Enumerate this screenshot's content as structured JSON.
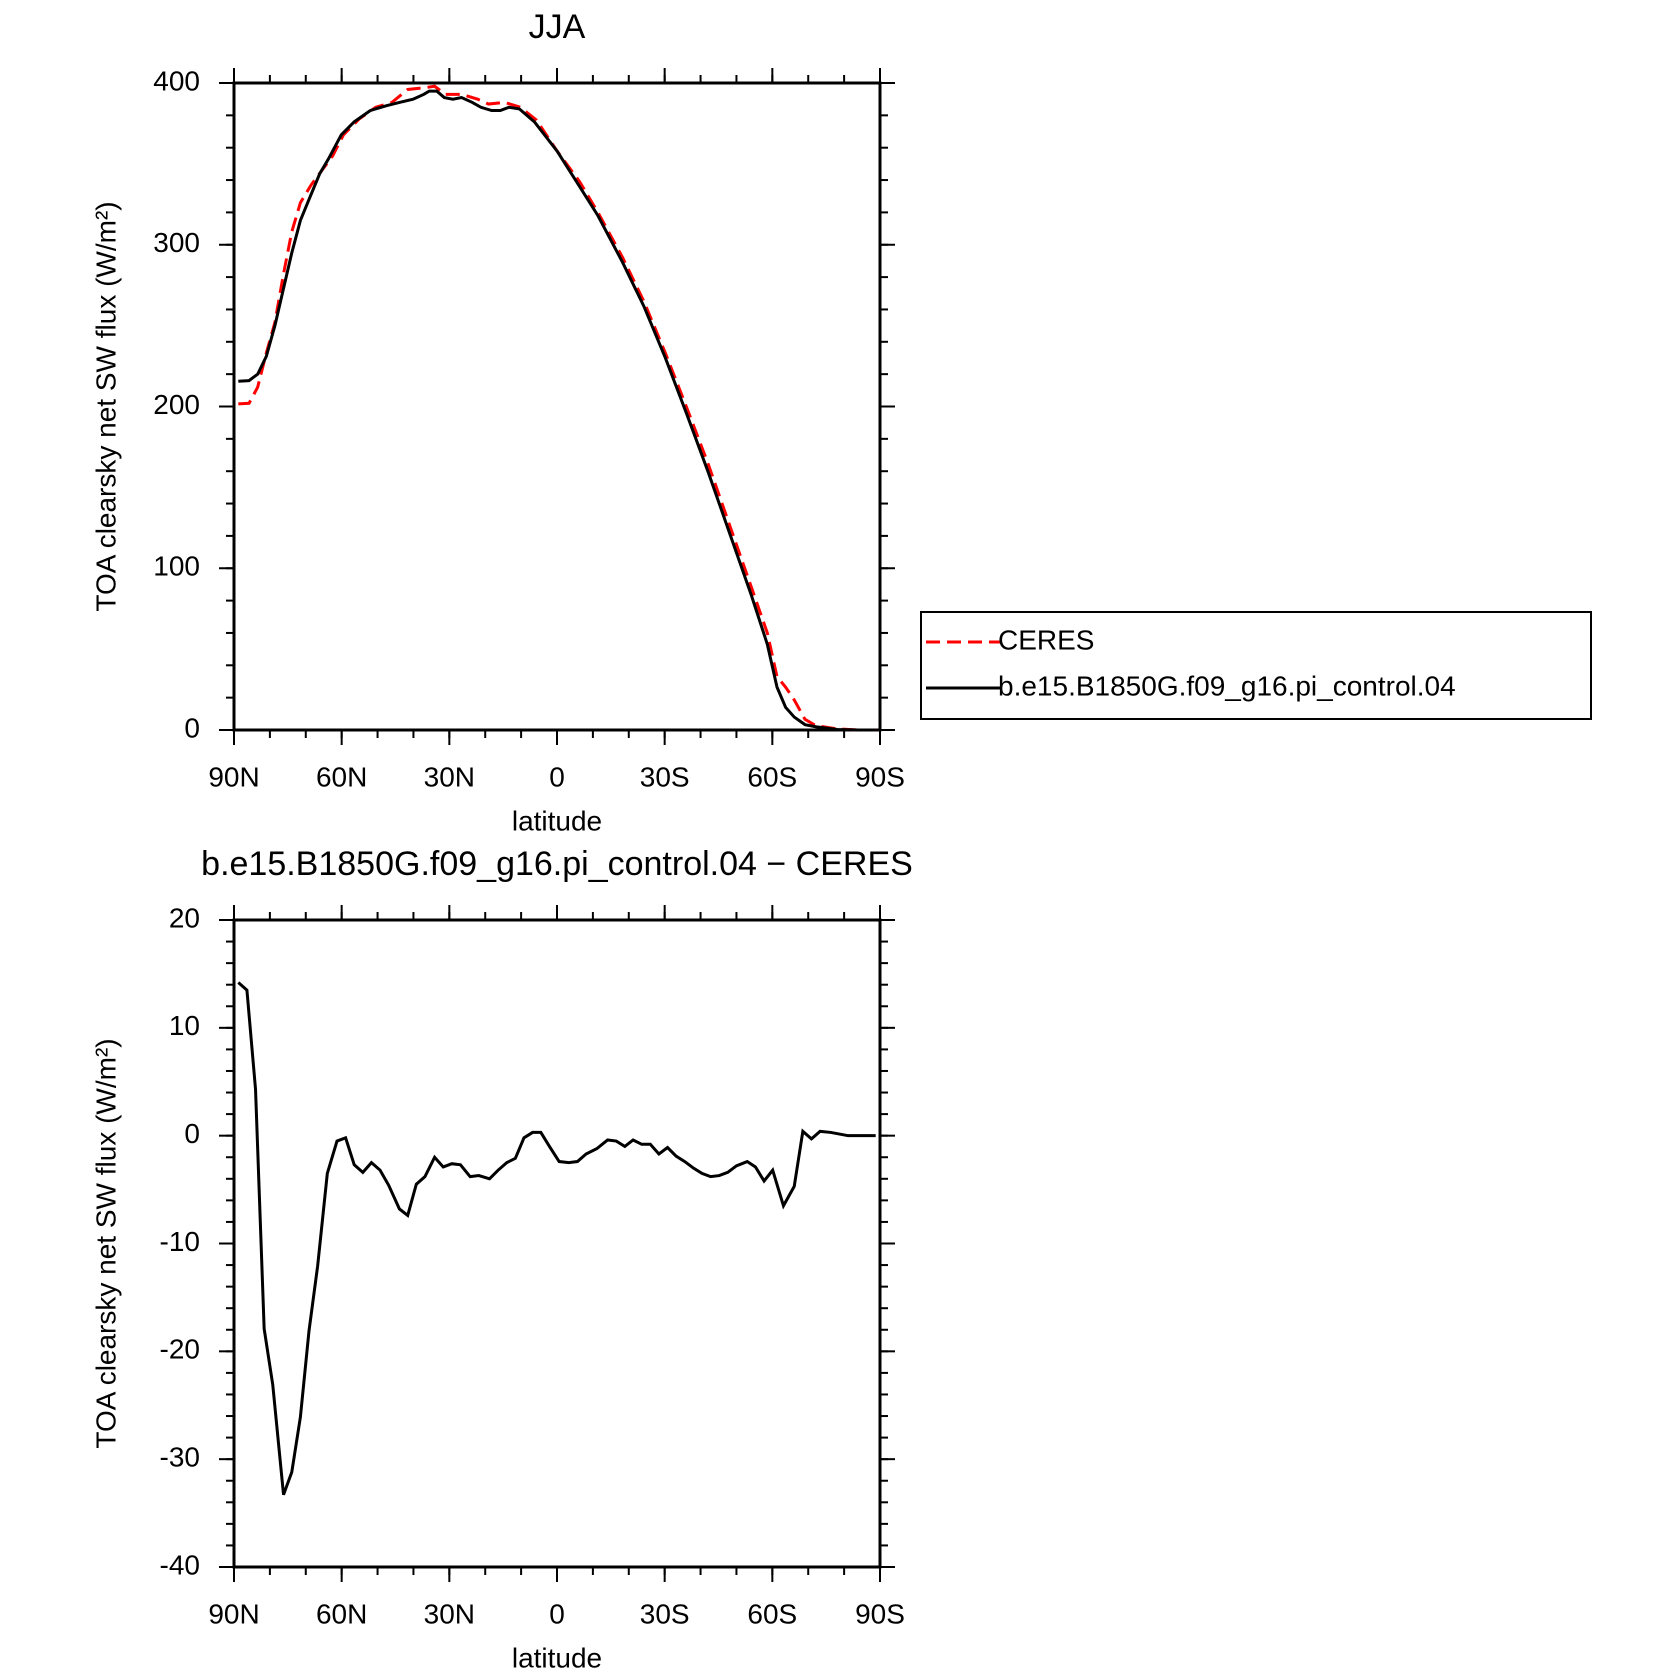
{
  "chart_data": [
    {
      "type": "line",
      "title": "JJA",
      "x_label": "latitude",
      "y_label": "TOA clearsky net SW flux (W/m²)",
      "xlim": [
        90,
        -90
      ],
      "xticks": [
        {
          "value": 90,
          "label": "90N"
        },
        {
          "value": 60,
          "label": "60N"
        },
        {
          "value": 30,
          "label": "30N"
        },
        0,
        {
          "value": -30,
          "label": "30S"
        },
        {
          "value": -60,
          "label": "60S"
        },
        {
          "value": -90,
          "label": "90S"
        }
      ],
      "xminorticks": [
        90,
        80,
        70,
        60,
        50,
        40,
        30,
        20,
        10,
        0,
        -10,
        -20,
        -30,
        -40,
        -50,
        -60,
        -70,
        -80,
        -90
      ],
      "ylim": [
        0,
        400
      ],
      "yticks": [
        0,
        100,
        200,
        300,
        400
      ],
      "yminorticks": [
        0,
        20,
        40,
        60,
        80,
        100,
        120,
        140,
        160,
        180,
        200,
        220,
        240,
        260,
        280,
        300,
        320,
        340,
        360,
        380,
        400
      ],
      "legend": "right",
      "series": [
        {
          "name": "CERES",
          "color": "#ff0000",
          "dashed": true,
          "x": [
            88.8,
            85.8,
            83.4,
            81.0,
            78.6,
            76.2,
            73.9,
            71.5,
            68.5,
            65.5,
            62.5,
            59.5,
            55.0,
            50.5,
            46.0,
            41.6,
            37.1,
            34.1,
            31.1,
            26.6,
            22.1,
            19.1,
            14.6,
            10.2,
            5.7,
            0,
            -6.3,
            -11.4,
            -18.3,
            -24.2,
            -30.2,
            -36.2,
            -42.2,
            -48.2,
            -54.2,
            -58.6,
            -61.3,
            -63.7,
            -66.1,
            -69.1,
            -72.1,
            -78.1,
            -84.0,
            -88.8
          ],
          "values": [
            201.6,
            202,
            212,
            233,
            252,
            282,
            308,
            326,
            337,
            346,
            355,
            368,
            378,
            385,
            388,
            396,
            397,
            398,
            393,
            393,
            390,
            387,
            388,
            385,
            377,
            358,
            339,
            320,
            292,
            265,
            233,
            199,
            164,
            126,
            88,
            60,
            33,
            26.5,
            18.6,
            6.6,
            2.7,
            0.7,
            0,
            0
          ]
        },
        {
          "name": "b.e15.B1850G.f09_g16.pi_control.04",
          "color": "#000000",
          "dashed": false,
          "x": [
            88.8,
            85.8,
            83.4,
            81.0,
            78.6,
            76.2,
            73.9,
            71.5,
            69.1,
            66.1,
            63.7,
            60.1,
            56.5,
            52.0,
            47.5,
            43.9,
            40.1,
            37.1,
            35.6,
            33.5,
            31.4,
            29.0,
            26.6,
            23.6,
            21.2,
            18.2,
            15.8,
            13.4,
            10.5,
            6.3,
            0,
            -6.3,
            -11.4,
            -18.3,
            -24.2,
            -30.2,
            -36.2,
            -42.2,
            -48.2,
            -54.2,
            -58.6,
            -61.3,
            -63.7,
            -66.1,
            -69.1,
            -72.1,
            -78.1,
            -84.0,
            -88.8
          ],
          "values": [
            215.6,
            216,
            220,
            231,
            250,
            273,
            295,
            315,
            328,
            344,
            353,
            368,
            376,
            383,
            386,
            388,
            390,
            393,
            395,
            395,
            391,
            390,
            391,
            388,
            385,
            383,
            383,
            385,
            384,
            376,
            358,
            336,
            318,
            289,
            262,
            230,
            195,
            159,
            121,
            83,
            53,
            26.5,
            14,
            8,
            3.3,
            2,
            0.3,
            0,
            0
          ]
        }
      ]
    },
    {
      "type": "line",
      "title": "b.e15.B1850G.f09_g16.pi_control.04 − CERES",
      "x_label": "latitude",
      "y_label": "TOA clearsky net SW flux (W/m²)",
      "xlim": [
        90,
        -90
      ],
      "xticks": [
        {
          "value": 90,
          "label": "90N"
        },
        {
          "value": 60,
          "label": "60N"
        },
        {
          "value": 30,
          "label": "30N"
        },
        0,
        {
          "value": -30,
          "label": "30S"
        },
        {
          "value": -60,
          "label": "60S"
        },
        {
          "value": -90,
          "label": "90S"
        }
      ],
      "xminorticks": [
        90,
        80,
        70,
        60,
        50,
        40,
        30,
        20,
        10,
        0,
        -10,
        -20,
        -30,
        -40,
        -50,
        -60,
        -70,
        -80,
        -90
      ],
      "ylim": [
        -40,
        20
      ],
      "yticks": [
        -40,
        -30,
        -20,
        -10,
        0,
        10,
        20
      ],
      "yminorticks": [
        -40,
        -38,
        -36,
        -34,
        -32,
        -30,
        -28,
        -26,
        -24,
        -22,
        -20,
        -18,
        -16,
        -14,
        -12,
        -10,
        -8,
        -6,
        -4,
        -2,
        0,
        2,
        4,
        6,
        8,
        10,
        12,
        14,
        16,
        18,
        20
      ],
      "series": [
        {
          "color": "#000000",
          "dashed": false,
          "x": [
            88.8,
            86.4,
            84.0,
            81.6,
            79.2,
            76.2,
            73.9,
            71.5,
            69.1,
            66.7,
            64.0,
            61.3,
            58.9,
            56.5,
            54.1,
            51.7,
            49.3,
            46.9,
            43.9,
            41.6,
            39.2,
            36.8,
            34.1,
            31.7,
            29.3,
            26.9,
            24.2,
            21.8,
            18.8,
            16.4,
            14.0,
            11.6,
            9.2,
            6.8,
            4.5,
            2.1,
            -0.6,
            -3.3,
            -5.7,
            -8.1,
            -11.1,
            -14.1,
            -16.5,
            -18.9,
            -21.2,
            -23.6,
            -26.0,
            -28.4,
            -30.8,
            -33.2,
            -35.6,
            -38.0,
            -40.4,
            -42.8,
            -45.2,
            -47.6,
            -50.0,
            -53.0,
            -55.3,
            -57.7,
            -60.1,
            -63.1,
            -66.1,
            -68.5,
            -70.9,
            -73.3,
            -76.3,
            -81.1,
            -88.8
          ],
          "values": [
            14.2,
            13.5,
            4.3,
            -17.9,
            -23.1,
            -33.3,
            -31.2,
            -26.1,
            -18.1,
            -12.1,
            -3.5,
            -0.5,
            -0.2,
            -2.7,
            -3.4,
            -2.5,
            -3.2,
            -4.6,
            -6.8,
            -7.4,
            -4.5,
            -3.8,
            -2.0,
            -2.9,
            -2.6,
            -2.7,
            -3.8,
            -3.7,
            -4.0,
            -3.2,
            -2.5,
            -2.1,
            -0.2,
            0.3,
            0.3,
            -1.0,
            -2.4,
            -2.5,
            -2.4,
            -1.7,
            -1.2,
            -0.4,
            -0.5,
            -1.0,
            -0.4,
            -0.8,
            -0.8,
            -1.7,
            -1.1,
            -1.9,
            -2.4,
            -3.0,
            -3.5,
            -3.8,
            -3.7,
            -3.4,
            -2.8,
            -2.4,
            -2.9,
            -4.2,
            -3.2,
            -6.5,
            -4.7,
            0.4,
            -0.3,
            0.4,
            0.3,
            0,
            0
          ]
        }
      ]
    }
  ]
}
